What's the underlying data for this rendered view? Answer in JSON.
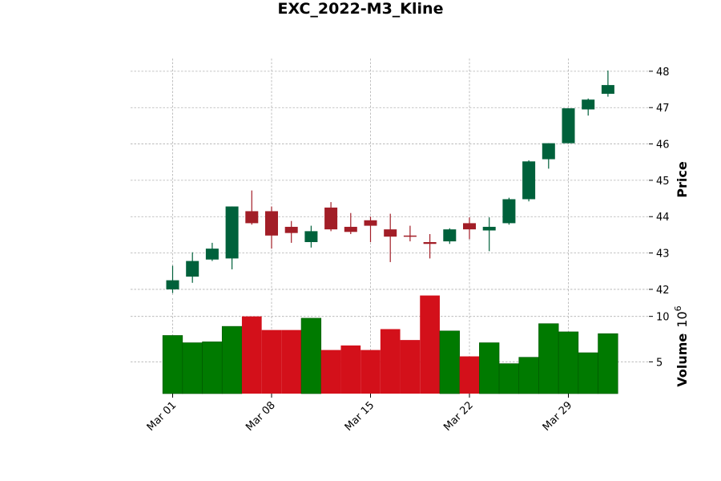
{
  "chart_data": {
    "type": "candlestick",
    "title": "EXC_2022-M3_Kline",
    "price_label": "Price",
    "volume_label": "Volume",
    "volume_exponent": "10",
    "volume_exponent_power": "6",
    "price_ylim": [
      41.8,
      48.35
    ],
    "volume_ylim": [
      1.5,
      12
    ],
    "price_ticks": [
      "42",
      "43",
      "44",
      "45",
      "46",
      "47",
      "48"
    ],
    "volume_ticks": [
      "5",
      "10"
    ],
    "x_ticks": [
      {
        "index": 0,
        "label": "Mar 01"
      },
      {
        "index": 5,
        "label": "Mar 08"
      },
      {
        "index": 10,
        "label": "Mar 15"
      },
      {
        "index": 15,
        "label": "Mar 22"
      },
      {
        "index": 20,
        "label": "Mar 29"
      }
    ],
    "grid": true,
    "colors": {
      "up_candle": "#00613b",
      "down_candle": "#a21e27",
      "up_volume": "#007a00",
      "down_volume": "#d3101a",
      "volume_edge": "#005500"
    },
    "candles": [
      {
        "date": "2022-03-01",
        "open": 42.0,
        "high": 42.65,
        "low": 41.9,
        "close": 42.25
      },
      {
        "date": "2022-03-02",
        "open": 42.35,
        "high": 43.02,
        "low": 42.18,
        "close": 42.78
      },
      {
        "date": "2022-03-03",
        "open": 42.82,
        "high": 43.28,
        "low": 42.78,
        "close": 43.12
      },
      {
        "date": "2022-03-04",
        "open": 42.85,
        "high": 44.28,
        "low": 42.55,
        "close": 44.28
      },
      {
        "date": "2022-03-07",
        "open": 44.15,
        "high": 44.72,
        "low": 43.78,
        "close": 43.82
      },
      {
        "date": "2022-03-08",
        "open": 44.15,
        "high": 44.28,
        "low": 43.12,
        "close": 43.48
      },
      {
        "date": "2022-03-09",
        "open": 43.72,
        "high": 43.88,
        "low": 43.28,
        "close": 43.55
      },
      {
        "date": "2022-03-10",
        "open": 43.3,
        "high": 43.75,
        "low": 43.15,
        "close": 43.6
      },
      {
        "date": "2022-03-11",
        "open": 44.25,
        "high": 44.4,
        "low": 43.6,
        "close": 43.65
      },
      {
        "date": "2022-03-14",
        "open": 43.72,
        "high": 44.1,
        "low": 43.52,
        "close": 43.58
      },
      {
        "date": "2022-03-15",
        "open": 43.9,
        "high": 44.0,
        "low": 43.3,
        "close": 43.75
      },
      {
        "date": "2022-03-16",
        "open": 43.65,
        "high": 44.08,
        "low": 42.75,
        "close": 43.45
      },
      {
        "date": "2022-03-17",
        "open": 43.48,
        "high": 43.75,
        "low": 43.32,
        "close": 43.45
      },
      {
        "date": "2022-03-18",
        "open": 43.3,
        "high": 43.52,
        "low": 42.85,
        "close": 43.25
      },
      {
        "date": "2022-03-21",
        "open": 43.32,
        "high": 43.68,
        "low": 43.25,
        "close": 43.65
      },
      {
        "date": "2022-03-22",
        "open": 43.82,
        "high": 43.98,
        "low": 43.38,
        "close": 43.65
      },
      {
        "date": "2022-03-23",
        "open": 43.62,
        "high": 43.98,
        "low": 43.05,
        "close": 43.72
      },
      {
        "date": "2022-03-24",
        "open": 43.82,
        "high": 44.52,
        "low": 43.78,
        "close": 44.48
      },
      {
        "date": "2022-03-25",
        "open": 44.48,
        "high": 45.55,
        "low": 44.42,
        "close": 45.52
      },
      {
        "date": "2022-03-28",
        "open": 45.58,
        "high": 46.02,
        "low": 45.32,
        "close": 46.02
      },
      {
        "date": "2022-03-29",
        "open": 46.02,
        "high": 46.98,
        "low": 46.02,
        "close": 46.98
      },
      {
        "date": "2022-03-30",
        "open": 46.95,
        "high": 47.25,
        "low": 46.78,
        "close": 47.22
      },
      {
        "date": "2022-03-31",
        "open": 47.38,
        "high": 48.02,
        "low": 47.3,
        "close": 47.62
      }
    ],
    "volume": [
      7.9,
      7.1,
      7.2,
      8.9,
      10.0,
      8.5,
      8.5,
      9.8,
      6.3,
      6.8,
      6.3,
      8.6,
      7.4,
      12.3,
      8.4,
      5.6,
      7.1,
      4.8,
      5.5,
      9.2,
      8.3,
      6.0,
      8.1
    ]
  }
}
